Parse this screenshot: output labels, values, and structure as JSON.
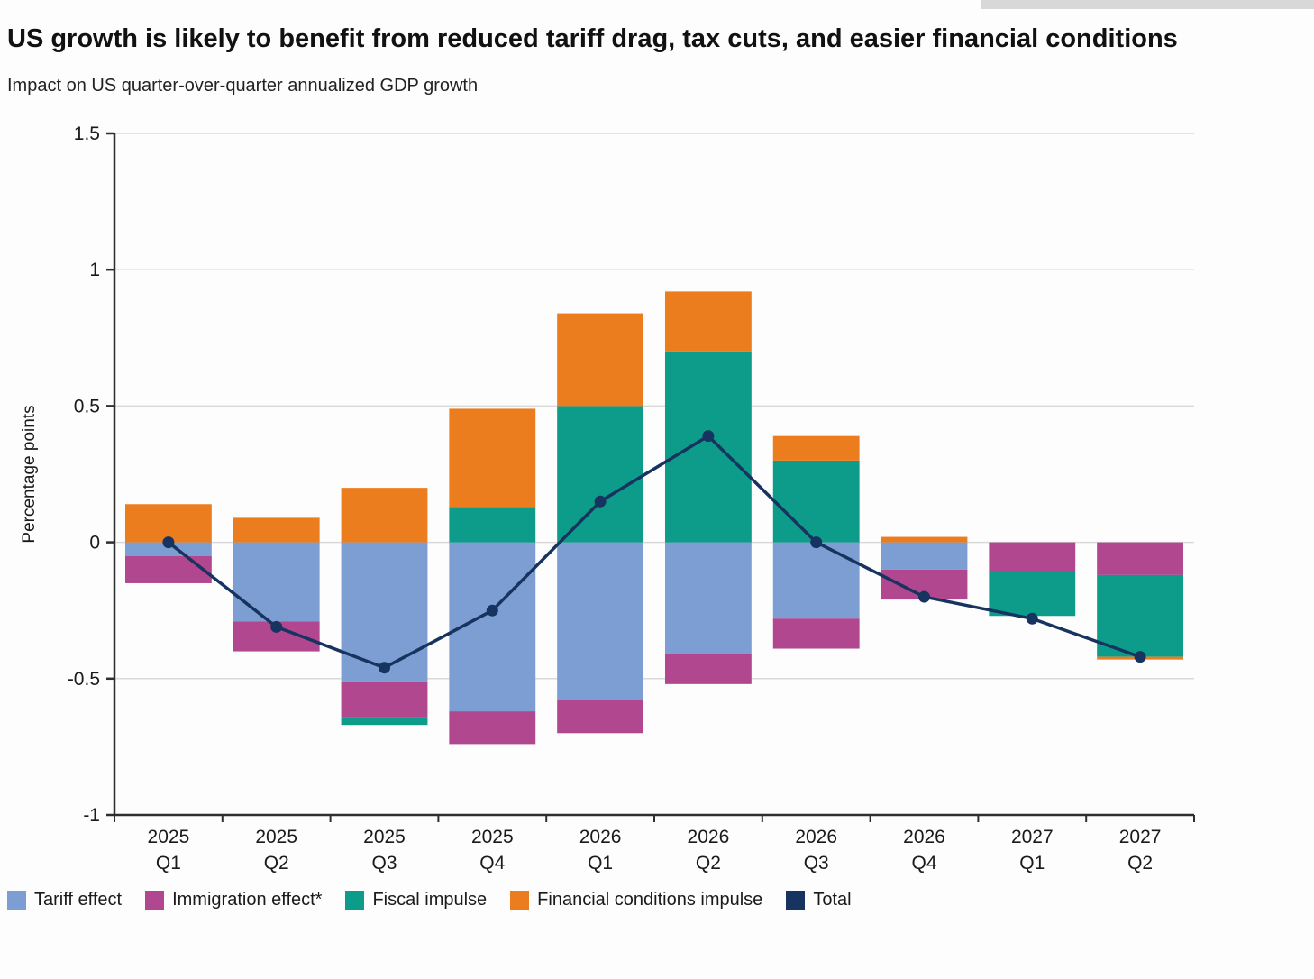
{
  "page": {
    "title": "US growth is likely to benefit from reduced tariff drag, tax cuts, and easier financial conditions",
    "subtitle": "Impact on US quarter-over-quarter annualized GDP growth"
  },
  "chart_data": {
    "type": "bar",
    "subtype": "stacked_bars_with_total_line",
    "title": "US growth is likely to benefit from reduced tariff drag, tax cuts, and easier financial conditions",
    "subtitle": "Impact on US quarter-over-quarter annualized GDP growth",
    "xlabel": "",
    "ylabel": "Percentage points",
    "ylim": [
      -1,
      1.5
    ],
    "yticks": [
      1.5,
      1,
      0.5,
      0,
      -0.5,
      -1
    ],
    "grid": true,
    "legend_position": "bottom",
    "axis_color": "#2e2e2e",
    "grid_color": "#d9d9d9",
    "categories": [
      "2025 Q1",
      "2025 Q2",
      "2025 Q3",
      "2025 Q4",
      "2026 Q1",
      "2026 Q2",
      "2026 Q3",
      "2026 Q4",
      "2027 Q1",
      "2027 Q2"
    ],
    "series": [
      {
        "name": "Tariff effect",
        "type": "bar",
        "color": "#7d9ed2",
        "values": [
          -0.05,
          -0.29,
          -0.51,
          -0.62,
          -0.58,
          -0.41,
          -0.28,
          -0.1,
          0,
          0
        ]
      },
      {
        "name": "Immigration effect*",
        "type": "bar",
        "color": "#b0478f",
        "values": [
          -0.1,
          -0.11,
          -0.13,
          -0.12,
          -0.12,
          -0.11,
          -0.11,
          -0.11,
          -0.11,
          -0.12
        ]
      },
      {
        "name": "Fiscal impulse",
        "type": "bar",
        "color": "#0d9c8a",
        "values": [
          0,
          0,
          -0.03,
          0.13,
          0.5,
          0.7,
          0.3,
          0,
          -0.16,
          -0.3
        ]
      },
      {
        "name": "Financial conditions impulse",
        "type": "bar",
        "color": "#ec7d1f",
        "values": [
          0.14,
          0.09,
          0.2,
          0.36,
          0.34,
          0.22,
          0.09,
          0.02,
          0,
          -0.01
        ]
      },
      {
        "name": "Total",
        "type": "line",
        "color": "#17335f",
        "values": [
          0.0,
          -0.31,
          -0.46,
          -0.25,
          0.15,
          0.39,
          0.0,
          -0.2,
          -0.28,
          -0.42
        ]
      }
    ]
  }
}
